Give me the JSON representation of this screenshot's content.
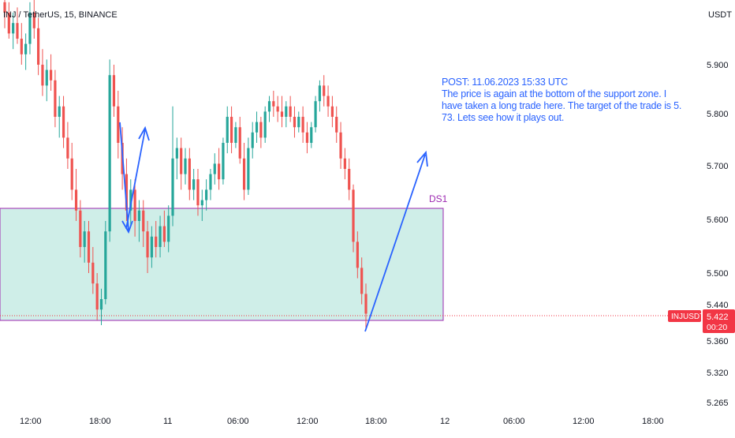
{
  "header": {
    "symbol_title": "INJ / TetherUS, 15, BINANCE"
  },
  "axis": {
    "currency": "USDT",
    "price_ticks": [
      "5.900",
      "5.800",
      "5.700",
      "5.600",
      "5.500",
      "5.440",
      "5.360",
      "5.320",
      "5.265"
    ],
    "time_ticks": [
      "12:00",
      "18:00",
      "11",
      "06:00",
      "12:00",
      "18:00",
      "12",
      "06:00",
      "12:00",
      "18:00"
    ]
  },
  "zone": {
    "label": "DS1"
  },
  "annotation": {
    "lines": [
      "POST: 11.06.2023 15:33 UTC",
      "The price is again at the bottom of the support zone. I",
      "have taken a long trade here. The target of the trade is 5.",
      "73. Lets see how it plays out."
    ]
  },
  "price_badge": {
    "symbol": "INJUSDT",
    "price": "5.422",
    "countdown": "00:20"
  },
  "colors": {
    "up": "#26a69a",
    "down": "#ef5350",
    "zone_fill": "#cfeee8",
    "zone_border": "#9c27b0",
    "arrow": "#2962ff",
    "badge": "#f23645"
  },
  "chart_data": {
    "type": "candlestick",
    "instrument": "INJ / TetherUS",
    "timeframe": "15",
    "exchange": "BINANCE",
    "ylim": [
      5.25,
      6.05
    ],
    "x": [
      "12:00",
      "18:00",
      "11",
      "06:00",
      "12:00",
      "18:00",
      "12",
      "06:00",
      "12:00",
      "18:00"
    ],
    "price_levels": [
      5.9,
      5.8,
      5.7,
      5.6,
      5.5,
      5.44,
      5.36,
      5.32,
      5.265
    ],
    "last_price": 5.422,
    "support_zone": {
      "name": "DS1",
      "top": 5.62,
      "bottom": 5.42
    },
    "series": [
      {
        "values": [
          {
            "o": 6.02,
            "h": 6.05,
            "l": 5.97,
            "c": 6.0
          },
          {
            "o": 6.0,
            "h": 6.02,
            "l": 5.95,
            "c": 5.96
          },
          {
            "o": 5.96,
            "h": 6.0,
            "l": 5.93,
            "c": 5.98
          },
          {
            "o": 5.98,
            "h": 6.01,
            "l": 5.94,
            "c": 5.95
          },
          {
            "o": 5.95,
            "h": 5.98,
            "l": 5.9,
            "c": 5.92
          },
          {
            "o": 5.92,
            "h": 5.96,
            "l": 5.89,
            "c": 5.94
          },
          {
            "o": 5.94,
            "h": 6.02,
            "l": 5.92,
            "c": 6.0
          },
          {
            "o": 6.0,
            "h": 6.04,
            "l": 5.95,
            "c": 5.97
          },
          {
            "o": 5.97,
            "h": 5.99,
            "l": 5.88,
            "c": 5.9
          },
          {
            "o": 5.9,
            "h": 5.93,
            "l": 5.84,
            "c": 5.86
          },
          {
            "o": 5.86,
            "h": 5.91,
            "l": 5.83,
            "c": 5.89
          },
          {
            "o": 5.89,
            "h": 5.92,
            "l": 5.85,
            "c": 5.87
          },
          {
            "o": 5.87,
            "h": 5.89,
            "l": 5.78,
            "c": 5.8
          },
          {
            "o": 5.8,
            "h": 5.84,
            "l": 5.76,
            "c": 5.82
          },
          {
            "o": 5.82,
            "h": 5.84,
            "l": 5.74,
            "c": 5.76
          },
          {
            "o": 5.76,
            "h": 5.79,
            "l": 5.7,
            "c": 5.72
          },
          {
            "o": 5.72,
            "h": 5.75,
            "l": 5.64,
            "c": 5.66
          },
          {
            "o": 5.66,
            "h": 5.7,
            "l": 5.6,
            "c": 5.62
          },
          {
            "o": 5.62,
            "h": 5.64,
            "l": 5.53,
            "c": 5.55
          },
          {
            "o": 5.55,
            "h": 5.6,
            "l": 5.52,
            "c": 5.58
          },
          {
            "o": 5.58,
            "h": 5.6,
            "l": 5.5,
            "c": 5.52
          },
          {
            "o": 5.52,
            "h": 5.55,
            "l": 5.46,
            "c": 5.48
          },
          {
            "o": 5.48,
            "h": 5.5,
            "l": 5.41,
            "c": 5.43
          },
          {
            "o": 5.43,
            "h": 5.47,
            "l": 5.4,
            "c": 5.45
          },
          {
            "o": 5.45,
            "h": 5.6,
            "l": 5.44,
            "c": 5.58
          },
          {
            "o": 5.58,
            "h": 5.91,
            "l": 5.56,
            "c": 5.88
          },
          {
            "o": 5.88,
            "h": 5.9,
            "l": 5.8,
            "c": 5.82
          },
          {
            "o": 5.82,
            "h": 5.85,
            "l": 5.72,
            "c": 5.75
          },
          {
            "o": 5.75,
            "h": 5.78,
            "l": 5.66,
            "c": 5.69
          },
          {
            "o": 5.69,
            "h": 5.72,
            "l": 5.6,
            "c": 5.62
          },
          {
            "o": 5.62,
            "h": 5.68,
            "l": 5.59,
            "c": 5.66
          },
          {
            "o": 5.66,
            "h": 5.68,
            "l": 5.57,
            "c": 5.6
          },
          {
            "o": 5.6,
            "h": 5.64,
            "l": 5.56,
            "c": 5.62
          },
          {
            "o": 5.62,
            "h": 5.64,
            "l": 5.55,
            "c": 5.58
          },
          {
            "o": 5.58,
            "h": 5.6,
            "l": 5.5,
            "c": 5.53
          },
          {
            "o": 5.53,
            "h": 5.59,
            "l": 5.51,
            "c": 5.57
          },
          {
            "o": 5.57,
            "h": 5.6,
            "l": 5.53,
            "c": 5.55
          },
          {
            "o": 5.55,
            "h": 5.61,
            "l": 5.53,
            "c": 5.59
          },
          {
            "o": 5.59,
            "h": 5.62,
            "l": 5.55,
            "c": 5.56
          },
          {
            "o": 5.56,
            "h": 5.63,
            "l": 5.54,
            "c": 5.61
          },
          {
            "o": 5.61,
            "h": 5.82,
            "l": 5.59,
            "c": 5.72
          },
          {
            "o": 5.72,
            "h": 5.76,
            "l": 5.68,
            "c": 5.74
          },
          {
            "o": 5.74,
            "h": 5.76,
            "l": 5.66,
            "c": 5.69
          },
          {
            "o": 5.69,
            "h": 5.74,
            "l": 5.67,
            "c": 5.72
          },
          {
            "o": 5.72,
            "h": 5.74,
            "l": 5.64,
            "c": 5.66
          },
          {
            "o": 5.66,
            "h": 5.7,
            "l": 5.64,
            "c": 5.68
          },
          {
            "o": 5.68,
            "h": 5.7,
            "l": 5.61,
            "c": 5.63
          },
          {
            "o": 5.63,
            "h": 5.66,
            "l": 5.6,
            "c": 5.64
          },
          {
            "o": 5.64,
            "h": 5.68,
            "l": 5.62,
            "c": 5.66
          },
          {
            "o": 5.66,
            "h": 5.7,
            "l": 5.64,
            "c": 5.69
          },
          {
            "o": 5.69,
            "h": 5.73,
            "l": 5.67,
            "c": 5.71
          },
          {
            "o": 5.71,
            "h": 5.74,
            "l": 5.66,
            "c": 5.68
          },
          {
            "o": 5.68,
            "h": 5.76,
            "l": 5.67,
            "c": 5.75
          },
          {
            "o": 5.75,
            "h": 5.82,
            "l": 5.73,
            "c": 5.8
          },
          {
            "o": 5.8,
            "h": 5.82,
            "l": 5.73,
            "c": 5.75
          },
          {
            "o": 5.75,
            "h": 5.79,
            "l": 5.74,
            "c": 5.78
          },
          {
            "o": 5.78,
            "h": 5.8,
            "l": 5.71,
            "c": 5.72
          },
          {
            "o": 5.72,
            "h": 5.75,
            "l": 5.64,
            "c": 5.66
          },
          {
            "o": 5.66,
            "h": 5.76,
            "l": 5.65,
            "c": 5.74
          },
          {
            "o": 5.74,
            "h": 5.79,
            "l": 5.72,
            "c": 5.77
          },
          {
            "o": 5.77,
            "h": 5.81,
            "l": 5.75,
            "c": 5.79
          },
          {
            "o": 5.79,
            "h": 5.8,
            "l": 5.74,
            "c": 5.76
          },
          {
            "o": 5.76,
            "h": 5.82,
            "l": 5.75,
            "c": 5.81
          },
          {
            "o": 5.81,
            "h": 5.84,
            "l": 5.79,
            "c": 5.83
          },
          {
            "o": 5.83,
            "h": 5.85,
            "l": 5.8,
            "c": 5.82
          },
          {
            "o": 5.82,
            "h": 5.84,
            "l": 5.79,
            "c": 5.81
          },
          {
            "o": 5.81,
            "h": 5.84,
            "l": 5.78,
            "c": 5.8
          },
          {
            "o": 5.8,
            "h": 5.83,
            "l": 5.78,
            "c": 5.82
          },
          {
            "o": 5.82,
            "h": 5.84,
            "l": 5.79,
            "c": 5.8
          },
          {
            "o": 5.8,
            "h": 5.82,
            "l": 5.76,
            "c": 5.78
          },
          {
            "o": 5.78,
            "h": 5.81,
            "l": 5.77,
            "c": 5.8
          },
          {
            "o": 5.8,
            "h": 5.82,
            "l": 5.75,
            "c": 5.77
          },
          {
            "o": 5.77,
            "h": 5.79,
            "l": 5.73,
            "c": 5.75
          },
          {
            "o": 5.75,
            "h": 5.79,
            "l": 5.74,
            "c": 5.78
          },
          {
            "o": 5.78,
            "h": 5.84,
            "l": 5.77,
            "c": 5.83
          },
          {
            "o": 5.83,
            "h": 5.87,
            "l": 5.81,
            "c": 5.86
          },
          {
            "o": 5.86,
            "h": 5.88,
            "l": 5.82,
            "c": 5.84
          },
          {
            "o": 5.84,
            "h": 5.86,
            "l": 5.8,
            "c": 5.82
          },
          {
            "o": 5.82,
            "h": 5.84,
            "l": 5.78,
            "c": 5.8
          },
          {
            "o": 5.8,
            "h": 5.82,
            "l": 5.75,
            "c": 5.77
          },
          {
            "o": 5.77,
            "h": 5.79,
            "l": 5.7,
            "c": 5.72
          },
          {
            "o": 5.72,
            "h": 5.74,
            "l": 5.68,
            "c": 5.7
          },
          {
            "o": 5.7,
            "h": 5.72,
            "l": 5.64,
            "c": 5.66
          },
          {
            "o": 5.66,
            "h": 5.67,
            "l": 5.54,
            "c": 5.56
          },
          {
            "o": 5.56,
            "h": 5.58,
            "l": 5.49,
            "c": 5.51
          },
          {
            "o": 5.51,
            "h": 5.53,
            "l": 5.44,
            "c": 5.46
          },
          {
            "o": 5.46,
            "h": 5.48,
            "l": 5.39,
            "c": 5.422
          }
        ]
      }
    ]
  }
}
